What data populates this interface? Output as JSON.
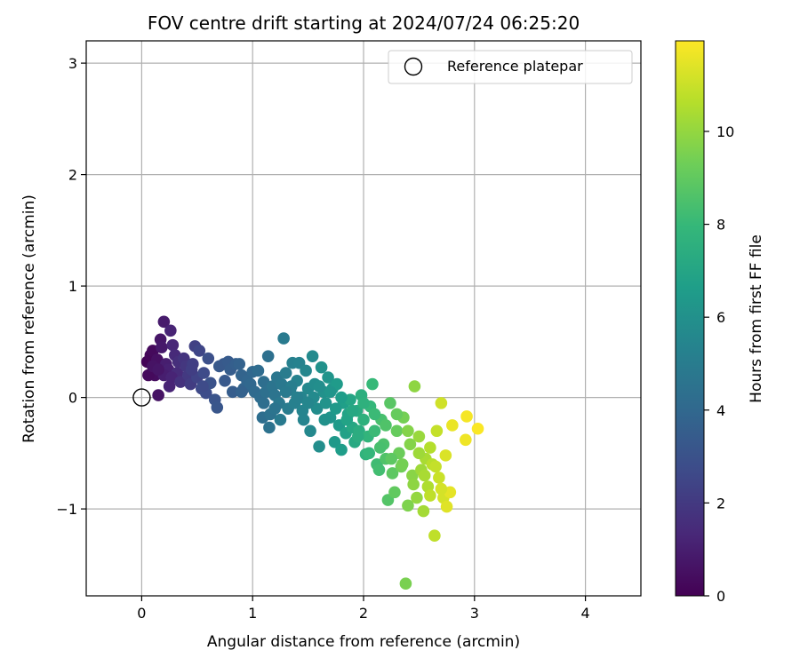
{
  "chart_data": {
    "type": "scatter",
    "title": "FOV centre drift starting at 2024/07/24 06:25:20",
    "xlabel": "Angular distance from reference (arcmin)",
    "ylabel": "Rotation from reference (arcmin)",
    "xlim": [
      -0.5,
      4.5
    ],
    "ylim": [
      -1.78,
      3.2
    ],
    "xticks": [
      0,
      1,
      2,
      3,
      4
    ],
    "yticks": [
      -1,
      0,
      1,
      2,
      3
    ],
    "xtick_labels": [
      "0",
      "1",
      "2",
      "3",
      "4"
    ],
    "ytick_labels": [
      "−1",
      "0",
      "1",
      "2",
      "3"
    ],
    "grid": true,
    "legend": {
      "position": "top-right",
      "entries": [
        "Reference platepar"
      ]
    },
    "reference_point": {
      "x": 0,
      "y": 0,
      "marker": "open-circle"
    },
    "colorbar": {
      "label": "Hours from first FF file",
      "range": [
        0,
        11.95
      ],
      "ticks": [
        0,
        2,
        4,
        6,
        8,
        10
      ],
      "colormap": "viridis",
      "colors": [
        "#440154",
        "#482878",
        "#3e4a89",
        "#31688e",
        "#26828e",
        "#1f9e89",
        "#35b779",
        "#6ece58",
        "#b5de2b",
        "#fde725"
      ]
    },
    "series": [
      {
        "points": [
          {
            "x": 0.05,
            "y": 0.32,
            "h": 0.1
          },
          {
            "x": 0.08,
            "y": 0.38,
            "h": 0.2
          },
          {
            "x": 0.1,
            "y": 0.42,
            "h": 0.3
          },
          {
            "x": 0.12,
            "y": 0.2,
            "h": 0.4
          },
          {
            "x": 0.14,
            "y": 0.34,
            "h": 0.5
          },
          {
            "x": 0.15,
            "y": 0.02,
            "h": 0.6
          },
          {
            "x": 0.17,
            "y": 0.52,
            "h": 0.7
          },
          {
            "x": 0.18,
            "y": 0.45,
            "h": 0.8
          },
          {
            "x": 0.2,
            "y": 0.68,
            "h": 0.9
          },
          {
            "x": 0.22,
            "y": 0.3,
            "h": 1.0
          },
          {
            "x": 0.24,
            "y": 0.25,
            "h": 1.1
          },
          {
            "x": 0.26,
            "y": 0.6,
            "h": 1.2
          },
          {
            "x": 0.28,
            "y": 0.47,
            "h": 1.3
          },
          {
            "x": 0.3,
            "y": 0.38,
            "h": 1.4
          },
          {
            "x": 0.32,
            "y": 0.22,
            "h": 1.5
          },
          {
            "x": 0.06,
            "y": 0.2,
            "h": 0.3
          },
          {
            "x": 0.1,
            "y": 0.28,
            "h": 0.6
          },
          {
            "x": 0.2,
            "y": 0.2,
            "h": 1.0
          },
          {
            "x": 0.27,
            "y": 0.18,
            "h": 1.2
          },
          {
            "x": 0.33,
            "y": 0.32,
            "h": 1.6
          },
          {
            "x": 0.35,
            "y": 0.14,
            "h": 1.7
          },
          {
            "x": 0.38,
            "y": 0.35,
            "h": 1.8
          },
          {
            "x": 0.4,
            "y": 0.28,
            "h": 1.9
          },
          {
            "x": 0.42,
            "y": 0.2,
            "h": 2.0
          },
          {
            "x": 0.44,
            "y": 0.12,
            "h": 2.1
          },
          {
            "x": 0.46,
            "y": 0.3,
            "h": 2.2
          },
          {
            "x": 0.48,
            "y": 0.46,
            "h": 2.3
          },
          {
            "x": 0.5,
            "y": 0.18,
            "h": 2.4
          },
          {
            "x": 0.52,
            "y": 0.42,
            "h": 2.5
          },
          {
            "x": 0.54,
            "y": 0.08,
            "h": 2.6
          },
          {
            "x": 0.56,
            "y": 0.22,
            "h": 2.7
          },
          {
            "x": 0.58,
            "y": 0.04,
            "h": 2.8
          },
          {
            "x": 0.6,
            "y": 0.35,
            "h": 2.9
          },
          {
            "x": 0.62,
            "y": 0.13,
            "h": 3.0
          },
          {
            "x": 0.66,
            "y": -0.02,
            "h": 3.1
          },
          {
            "x": 0.68,
            "y": -0.09,
            "h": 3.2
          },
          {
            "x": 0.7,
            "y": 0.28,
            "h": 3.3
          },
          {
            "x": 0.74,
            "y": 0.3,
            "h": 3.3
          },
          {
            "x": 0.78,
            "y": 0.32,
            "h": 3.4
          },
          {
            "x": 0.8,
            "y": 0.25,
            "h": 3.5
          },
          {
            "x": 0.82,
            "y": 0.05,
            "h": 3.5
          },
          {
            "x": 0.85,
            "y": 0.3,
            "h": 3.6
          },
          {
            "x": 0.88,
            "y": 0.3,
            "h": 3.7
          },
          {
            "x": 0.9,
            "y": 0.2,
            "h": 3.8
          },
          {
            "x": 0.92,
            "y": 0.08,
            "h": 3.8
          },
          {
            "x": 0.95,
            "y": 0.15,
            "h": 3.9
          },
          {
            "x": 0.98,
            "y": 0.12,
            "h": 4.0
          },
          {
            "x": 1.0,
            "y": 0.23,
            "h": 4.0
          },
          {
            "x": 1.02,
            "y": 0.05,
            "h": 4.1
          },
          {
            "x": 1.05,
            "y": 0.24,
            "h": 4.2
          },
          {
            "x": 1.07,
            "y": 0.0,
            "h": 4.2
          },
          {
            "x": 1.09,
            "y": -0.18,
            "h": 4.3
          },
          {
            "x": 1.1,
            "y": 0.14,
            "h": 4.3
          },
          {
            "x": 1.12,
            "y": 0.05,
            "h": 4.4
          },
          {
            "x": 1.14,
            "y": 0.37,
            "h": 4.4
          },
          {
            "x": 1.15,
            "y": -0.27,
            "h": 4.5
          },
          {
            "x": 1.16,
            "y": -0.15,
            "h": 4.5
          },
          {
            "x": 1.18,
            "y": 0.1,
            "h": 4.6
          },
          {
            "x": 1.2,
            "y": 0.02,
            "h": 4.6
          },
          {
            "x": 1.22,
            "y": 0.18,
            "h": 4.7
          },
          {
            "x": 1.24,
            "y": -0.05,
            "h": 4.8
          },
          {
            "x": 1.26,
            "y": 0.12,
            "h": 4.8
          },
          {
            "x": 1.28,
            "y": 0.53,
            "h": 4.9
          },
          {
            "x": 1.3,
            "y": 0.22,
            "h": 5.0
          },
          {
            "x": 1.32,
            "y": -0.1,
            "h": 5.0
          },
          {
            "x": 1.34,
            "y": 0.07,
            "h": 5.1
          },
          {
            "x": 1.36,
            "y": 0.31,
            "h": 5.2
          },
          {
            "x": 1.38,
            "y": -0.05,
            "h": 5.2
          },
          {
            "x": 1.4,
            "y": 0.15,
            "h": 5.3
          },
          {
            "x": 1.42,
            "y": 0.31,
            "h": 5.3
          },
          {
            "x": 1.44,
            "y": 0.0,
            "h": 5.4
          },
          {
            "x": 1.46,
            "y": -0.2,
            "h": 5.4
          },
          {
            "x": 1.48,
            "y": 0.24,
            "h": 5.5
          },
          {
            "x": 1.5,
            "y": 0.08,
            "h": 5.6
          },
          {
            "x": 1.52,
            "y": -0.3,
            "h": 5.6
          },
          {
            "x": 1.54,
            "y": 0.37,
            "h": 5.7
          },
          {
            "x": 1.56,
            "y": 0.12,
            "h": 5.8
          },
          {
            "x": 1.58,
            "y": -0.1,
            "h": 5.8
          },
          {
            "x": 1.6,
            "y": -0.44,
            "h": 5.9
          },
          {
            "x": 1.62,
            "y": 0.27,
            "h": 6.0
          },
          {
            "x": 1.64,
            "y": 0.05,
            "h": 6.0
          },
          {
            "x": 1.66,
            "y": -0.05,
            "h": 6.1
          },
          {
            "x": 1.68,
            "y": 0.18,
            "h": 6.2
          },
          {
            "x": 1.7,
            "y": -0.18,
            "h": 6.2
          },
          {
            "x": 1.72,
            "y": 0.08,
            "h": 6.3
          },
          {
            "x": 1.74,
            "y": -0.4,
            "h": 6.4
          },
          {
            "x": 1.76,
            "y": 0.12,
            "h": 6.5
          },
          {
            "x": 1.78,
            "y": -0.25,
            "h": 6.5
          },
          {
            "x": 1.8,
            "y": -0.47,
            "h": 6.6
          },
          {
            "x": 1.82,
            "y": -0.05,
            "h": 6.7
          },
          {
            "x": 1.84,
            "y": -0.32,
            "h": 6.8
          },
          {
            "x": 1.86,
            "y": -0.15,
            "h": 6.9
          },
          {
            "x": 1.88,
            "y": -0.02,
            "h": 7.0
          },
          {
            "x": 1.9,
            "y": -0.27,
            "h": 7.1
          },
          {
            "x": 1.92,
            "y": -0.4,
            "h": 7.2
          },
          {
            "x": 1.94,
            "y": -0.12,
            "h": 7.3
          },
          {
            "x": 1.96,
            "y": -0.3,
            "h": 7.4
          },
          {
            "x": 1.98,
            "y": 0.02,
            "h": 7.5
          },
          {
            "x": 2.0,
            "y": -0.2,
            "h": 7.6
          },
          {
            "x": 2.02,
            "y": -0.51,
            "h": 7.7
          },
          {
            "x": 2.04,
            "y": -0.35,
            "h": 7.8
          },
          {
            "x": 2.06,
            "y": -0.08,
            "h": 7.9
          },
          {
            "x": 2.08,
            "y": 0.12,
            "h": 8.0
          },
          {
            "x": 2.1,
            "y": -0.3,
            "h": 8.1
          },
          {
            "x": 2.12,
            "y": -0.6,
            "h": 8.2
          },
          {
            "x": 2.14,
            "y": -0.65,
            "h": 8.3
          },
          {
            "x": 2.16,
            "y": -0.2,
            "h": 8.4
          },
          {
            "x": 2.18,
            "y": -0.42,
            "h": 8.5
          },
          {
            "x": 2.2,
            "y": -0.55,
            "h": 8.6
          },
          {
            "x": 2.22,
            "y": -0.92,
            "h": 8.7
          },
          {
            "x": 2.24,
            "y": -0.05,
            "h": 8.8
          },
          {
            "x": 2.26,
            "y": -0.68,
            "h": 8.9
          },
          {
            "x": 2.28,
            "y": -0.85,
            "h": 9.0
          },
          {
            "x": 2.3,
            "y": -0.3,
            "h": 9.1
          },
          {
            "x": 2.32,
            "y": -0.5,
            "h": 9.2
          },
          {
            "x": 2.34,
            "y": -0.62,
            "h": 9.3
          },
          {
            "x": 2.36,
            "y": -0.18,
            "h": 9.4
          },
          {
            "x": 2.38,
            "y": -1.67,
            "h": 9.5
          },
          {
            "x": 2.4,
            "y": -0.97,
            "h": 9.6
          },
          {
            "x": 2.42,
            "y": -0.42,
            "h": 9.7
          },
          {
            "x": 2.44,
            "y": -0.7,
            "h": 9.8
          },
          {
            "x": 2.46,
            "y": 0.1,
            "h": 9.9
          },
          {
            "x": 2.48,
            "y": -0.9,
            "h": 10.0
          },
          {
            "x": 2.5,
            "y": -0.35,
            "h": 10.1
          },
          {
            "x": 2.52,
            "y": -0.65,
            "h": 10.2
          },
          {
            "x": 2.54,
            "y": -1.02,
            "h": 10.3
          },
          {
            "x": 2.56,
            "y": -0.55,
            "h": 10.4
          },
          {
            "x": 2.58,
            "y": -0.8,
            "h": 10.5
          },
          {
            "x": 2.6,
            "y": -0.45,
            "h": 10.6
          },
          {
            "x": 2.62,
            "y": -0.6,
            "h": 10.7
          },
          {
            "x": 2.64,
            "y": -1.24,
            "h": 10.8
          },
          {
            "x": 2.66,
            "y": -0.3,
            "h": 10.9
          },
          {
            "x": 2.68,
            "y": -0.72,
            "h": 11.0
          },
          {
            "x": 2.7,
            "y": -0.05,
            "h": 11.1
          },
          {
            "x": 2.72,
            "y": -0.9,
            "h": 11.2
          },
          {
            "x": 2.74,
            "y": -0.52,
            "h": 11.3
          },
          {
            "x": 2.75,
            "y": -0.98,
            "h": 11.4
          },
          {
            "x": 2.78,
            "y": -0.85,
            "h": 11.5
          },
          {
            "x": 2.8,
            "y": -0.25,
            "h": 11.6
          },
          {
            "x": 2.92,
            "y": -0.38,
            "h": 11.7
          },
          {
            "x": 2.93,
            "y": -0.17,
            "h": 11.8
          },
          {
            "x": 3.03,
            "y": -0.28,
            "h": 11.9
          },
          {
            "x": 1.25,
            "y": -0.2,
            "h": 4.9
          },
          {
            "x": 1.35,
            "y": 0.1,
            "h": 5.1
          },
          {
            "x": 1.45,
            "y": -0.12,
            "h": 5.4
          },
          {
            "x": 1.55,
            "y": 0.0,
            "h": 5.7
          },
          {
            "x": 1.65,
            "y": -0.2,
            "h": 6.0
          },
          {
            "x": 1.75,
            "y": -0.1,
            "h": 6.4
          },
          {
            "x": 1.85,
            "y": -0.2,
            "h": 6.9
          },
          {
            "x": 1.95,
            "y": -0.35,
            "h": 7.4
          },
          {
            "x": 2.05,
            "y": -0.5,
            "h": 7.9
          },
          {
            "x": 2.15,
            "y": -0.45,
            "h": 8.4
          },
          {
            "x": 2.25,
            "y": -0.55,
            "h": 8.9
          },
          {
            "x": 2.35,
            "y": -0.6,
            "h": 9.4
          },
          {
            "x": 2.45,
            "y": -0.78,
            "h": 9.9
          },
          {
            "x": 2.55,
            "y": -0.7,
            "h": 10.4
          },
          {
            "x": 2.65,
            "y": -0.62,
            "h": 10.9
          },
          {
            "x": 2.7,
            "y": -0.82,
            "h": 11.2
          },
          {
            "x": 2.6,
            "y": -0.88,
            "h": 10.8
          },
          {
            "x": 2.5,
            "y": -0.5,
            "h": 10.2
          },
          {
            "x": 2.4,
            "y": -0.3,
            "h": 9.7
          },
          {
            "x": 2.3,
            "y": -0.15,
            "h": 9.1
          },
          {
            "x": 2.2,
            "y": -0.25,
            "h": 8.6
          },
          {
            "x": 2.1,
            "y": -0.15,
            "h": 8.1
          },
          {
            "x": 2.0,
            "y": -0.05,
            "h": 7.6
          },
          {
            "x": 1.9,
            "y": -0.12,
            "h": 7.1
          },
          {
            "x": 1.8,
            "y": 0.0,
            "h": 6.6
          },
          {
            "x": 1.7,
            "y": 0.05,
            "h": 6.2
          },
          {
            "x": 1.6,
            "y": 0.1,
            "h": 5.9
          },
          {
            "x": 1.5,
            "y": -0.05,
            "h": 5.5
          },
          {
            "x": 1.4,
            "y": 0.0,
            "h": 5.2
          },
          {
            "x": 1.3,
            "y": 0.05,
            "h": 4.9
          },
          {
            "x": 1.2,
            "y": -0.1,
            "h": 4.6
          },
          {
            "x": 1.1,
            "y": -0.05,
            "h": 4.3
          },
          {
            "x": 0.9,
            "y": 0.05,
            "h": 3.7
          },
          {
            "x": 0.75,
            "y": 0.15,
            "h": 3.3
          },
          {
            "x": 0.55,
            "y": 0.1,
            "h": 2.7
          },
          {
            "x": 0.45,
            "y": 0.25,
            "h": 2.2
          },
          {
            "x": 0.25,
            "y": 0.1,
            "h": 1.2
          },
          {
            "x": 0.15,
            "y": 0.25,
            "h": 0.7
          }
        ]
      }
    ]
  }
}
